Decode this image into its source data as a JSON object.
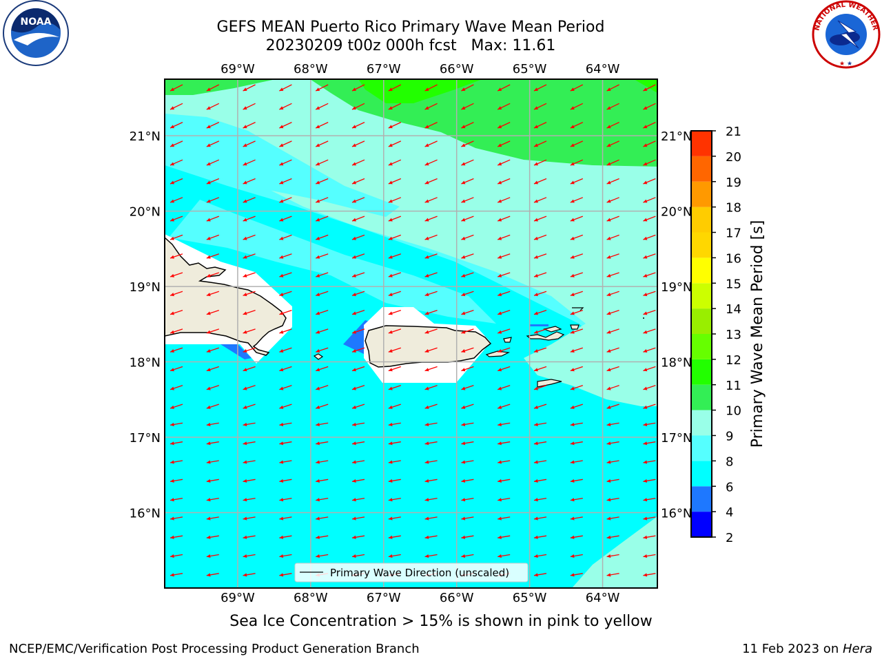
{
  "header": {
    "title_line1": "GEFS MEAN Puerto Rico Primary Wave Mean Period",
    "title_line2": "20230209 t00z 000h fcst   Max: 11.61"
  },
  "logos": {
    "left": {
      "name": "noaa-logo",
      "text": "NOAA"
    },
    "right": {
      "name": "nws-logo",
      "text": "NATIONAL WEATHER SERVICE"
    }
  },
  "map": {
    "lon_labels": [
      "69°W",
      "68°W",
      "67°W",
      "66°W",
      "65°W",
      "64°W"
    ],
    "lon_values": [
      -69,
      -68,
      -67,
      -66,
      -65,
      -64
    ],
    "lat_labels": [
      "21°N",
      "20°N",
      "19°N",
      "18°N",
      "17°N",
      "16°N"
    ],
    "lat_values": [
      21,
      20,
      19,
      18,
      17,
      16
    ],
    "lon_range": [
      -70,
      -63.25
    ],
    "lat_range": [
      15.0,
      21.75
    ],
    "vector_direction": "from east-northeast (pointing west-southwest)",
    "legend_label": "Primary Wave Direction (unscaled)",
    "islands": [
      "Hispaniola (east)",
      "Puerto Rico",
      "Vieques",
      "Culebra",
      "Virgin Islands",
      "St. Croix",
      "Mona"
    ]
  },
  "colorbar": {
    "label": "Primary Wave Mean Period [s]",
    "ticks": [
      "21",
      "20",
      "19",
      "18",
      "17",
      "16",
      "15",
      "14",
      "13",
      "12",
      "11",
      "10",
      "9",
      "8",
      "6",
      "4",
      "2"
    ],
    "levels": [
      2,
      4,
      6,
      8,
      9,
      10,
      11,
      12,
      13,
      14,
      15,
      16,
      17,
      18,
      19,
      20,
      21
    ],
    "colors": [
      "#0000ff",
      "#1e78ff",
      "#00ffff",
      "#55ffff",
      "#99ffe8",
      "#33ee55",
      "#22ff00",
      "#66ff00",
      "#99ee00",
      "#ccff00",
      "#ffff00",
      "#ffd700",
      "#ffcc00",
      "#ff9900",
      "#ff6600",
      "#ff3300",
      "#ff0000"
    ]
  },
  "colors": {
    "arrow": "#ff0000",
    "land": "#efecdc",
    "grid": "#b0b0b0"
  },
  "captions": {
    "ice_note": "Sea Ice Concentration > 15% is shown in pink to yellow"
  },
  "footer": {
    "left": "NCEP/EMC/Verification Post Processing Product Generation Branch",
    "right_prefix": "11 Feb 2023 on ",
    "right_host": "Hera"
  }
}
